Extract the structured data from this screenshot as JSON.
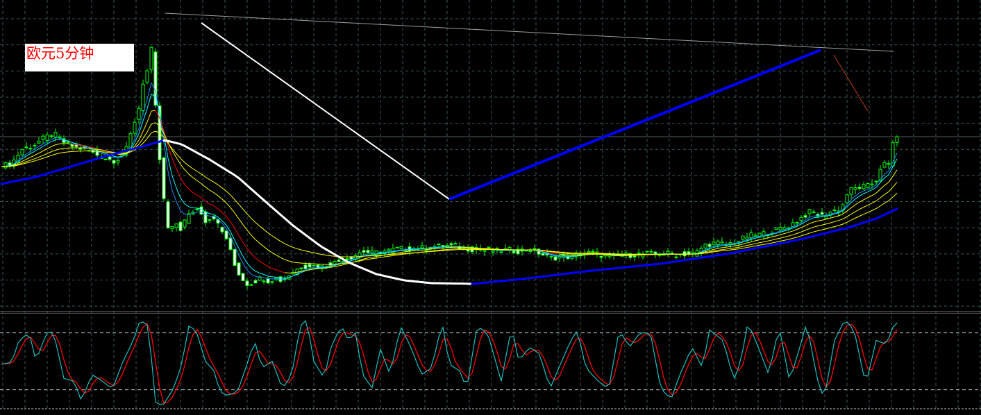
{
  "label": {
    "title": "欧元5分钟"
  },
  "colors": {
    "background": "#000000",
    "grid": "#3a5a5a",
    "candle": "#00ff00",
    "bear_body": "#ffffff",
    "ema_fast": "#1e90ff",
    "ema_fast2": "#00ffff",
    "ema_mid": "#ffff00",
    "ema_falling": "#ff0000",
    "ma_long_up": "#0000ff",
    "ma_long_down": "#ffffff",
    "stoch_main": "#20c0c0",
    "stoch_signal": "#ff0000",
    "level_lines": "#c8c8c8",
    "trend_gray": "#a0a0a0",
    "trend_white": "#ffffff",
    "trend_blue": "#0000ff",
    "trend_brown": "#c04010"
  },
  "chart_data": [
    {
      "type": "candlestick",
      "title": "",
      "grid": true,
      "bars": 216,
      "ylim": [
        0,
        450
      ],
      "close_points": [
        [
          0,
          210
        ],
        [
          2.5,
          215
        ],
        [
          5,
          235
        ],
        [
          7.5,
          240
        ],
        [
          10,
          250
        ],
        [
          12.5,
          258
        ],
        [
          15,
          245
        ],
        [
          17.5,
          238
        ],
        [
          20,
          235
        ],
        [
          22.5,
          228
        ],
        [
          25,
          222
        ],
        [
          27.5,
          218
        ],
        [
          30,
          235
        ],
        [
          31.7,
          270
        ],
        [
          33.3,
          300
        ],
        [
          34.2,
          340
        ],
        [
          35.3,
          350
        ],
        [
          36.3,
          390
        ],
        [
          37,
          295
        ],
        [
          38,
          220
        ],
        [
          39.2,
          150
        ],
        [
          40.3,
          110
        ],
        [
          41.7,
          130
        ],
        [
          43,
          120
        ],
        [
          44.3,
          135
        ],
        [
          45.8,
          145
        ],
        [
          47.5,
          150
        ],
        [
          49.2,
          130
        ],
        [
          50.8,
          140
        ],
        [
          52.5,
          120
        ],
        [
          54.2,
          105
        ],
        [
          55.8,
          70
        ],
        [
          57.5,
          50
        ],
        [
          59.2,
          40
        ],
        [
          60.8,
          45
        ],
        [
          62.5,
          50
        ],
        [
          64.2,
          45
        ],
        [
          65.8,
          50
        ],
        [
          67.5,
          45
        ],
        [
          69.2,
          55
        ],
        [
          71.7,
          65
        ],
        [
          74.2,
          68
        ],
        [
          76.7,
          65
        ],
        [
          79.2,
          70
        ],
        [
          81.7,
          75
        ],
        [
          84.2,
          80
        ],
        [
          86.7,
          88
        ],
        [
          89.2,
          85
        ],
        [
          91.7,
          88
        ],
        [
          94.2,
          90
        ],
        [
          96.7,
          92
        ],
        [
          99.2,
          92
        ],
        [
          101.7,
          93
        ],
        [
          104.2,
          95
        ],
        [
          106.7,
          96
        ],
        [
          109.2,
          95
        ],
        [
          111.7,
          92
        ],
        [
          114.2,
          90
        ],
        [
          116.7,
          90
        ],
        [
          119.2,
          88
        ],
        [
          121.7,
          90
        ],
        [
          124.2,
          88
        ],
        [
          126.7,
          92
        ],
        [
          129.2,
          85
        ],
        [
          131.7,
          78
        ],
        [
          134.2,
          80
        ],
        [
          136.7,
          80
        ],
        [
          139.2,
          84
        ],
        [
          141.7,
          86
        ],
        [
          144.2,
          82
        ],
        [
          146.7,
          80
        ],
        [
          149.2,
          82
        ],
        [
          151.7,
          83
        ],
        [
          154.2,
          84
        ],
        [
          156.7,
          84
        ],
        [
          159.2,
          85
        ],
        [
          161.7,
          83
        ],
        [
          164.2,
          84
        ],
        [
          166.7,
          85
        ],
        [
          169.2,
          98
        ],
        [
          171.7,
          100
        ],
        [
          174.2,
          98
        ],
        [
          176.7,
          102
        ],
        [
          179.2,
          110
        ],
        [
          181.7,
          112
        ],
        [
          184.2,
          115
        ],
        [
          186.7,
          120
        ],
        [
          189.2,
          125
        ],
        [
          191.7,
          135
        ],
        [
          194.2,
          145
        ],
        [
          196.7,
          138
        ],
        [
          199.2,
          145
        ],
        [
          201.7,
          150
        ],
        [
          203.3,
          175
        ],
        [
          205.8,
          180
        ],
        [
          208.3,
          182
        ],
        [
          210.3,
          192
        ],
        [
          211.3,
          215
        ],
        [
          213,
          212
        ],
        [
          214.2,
          250
        ],
        [
          215.3,
          257
        ]
      ],
      "moving_averages": [
        {
          "kind": "ema",
          "period": 5,
          "color_key": "ema_fast"
        },
        {
          "kind": "ema",
          "period": 7,
          "color_key": "ema_fast2"
        },
        {
          "kind": "ema",
          "period": 12,
          "color_key": "ema_mid",
          "falling_color_key": "ema_falling"
        },
        {
          "kind": "ema",
          "period": 20,
          "color_key": "ema_mid"
        },
        {
          "kind": "ema",
          "period": 30,
          "color_key": "ema_mid"
        }
      ],
      "long_ma_points": [
        [
          0,
          185
        ],
        [
          8.3,
          195
        ],
        [
          16.7,
          210
        ],
        [
          25,
          225
        ],
        [
          33.3,
          238
        ],
        [
          39.2,
          248
        ],
        [
          43.3,
          242
        ],
        [
          50,
          220
        ],
        [
          56.7,
          195
        ],
        [
          63.3,
          160
        ],
        [
          70,
          125
        ],
        [
          76.7,
          95
        ],
        [
          83.3,
          72
        ],
        [
          90,
          55
        ],
        [
          96.7,
          46
        ],
        [
          103.3,
          42
        ],
        [
          113.3,
          41
        ],
        [
          125,
          48
        ],
        [
          141.7,
          60
        ],
        [
          158.3,
          70
        ],
        [
          175,
          85
        ],
        [
          191.7,
          105
        ],
        [
          203.3,
          122
        ],
        [
          210,
          135
        ],
        [
          215.3,
          150
        ]
      ],
      "long_ma_down_range": [
        39.2,
        113.3
      ],
      "current_price": 253,
      "trendlines": [
        {
          "from": [
            39.3,
            431
          ],
          "to": [
            214.2,
            376
          ],
          "color_key": "trend_gray",
          "width": "thin"
        },
        {
          "from": [
            48,
            417
          ],
          "to": [
            107.5,
            163
          ],
          "color_key": "trend_white",
          "width": "medium"
        },
        {
          "from": [
            107.5,
            163
          ],
          "to": [
            196.7,
            378
          ],
          "color_key": "trend_blue",
          "width": "thick"
        },
        {
          "from": [
            199.8,
            371
          ],
          "to": [
            208,
            290
          ],
          "color_key": "trend_brown",
          "width": "thin"
        }
      ]
    },
    {
      "type": "line",
      "title": "",
      "ylim": [
        0,
        100
      ],
      "levels": [
        20,
        80
      ],
      "series": [
        {
          "key": "k",
          "color_key": "stoch_main",
          "points": [
            [
              0,
              47
            ],
            [
              2.5,
              49
            ],
            [
              4.2,
              72
            ],
            [
              6.7,
              80
            ],
            [
              8.3,
              50
            ],
            [
              10.8,
              80
            ],
            [
              12.5,
              81
            ],
            [
              15,
              32
            ],
            [
              17.5,
              29
            ],
            [
              19.2,
              8
            ],
            [
              21.7,
              36
            ],
            [
              23.3,
              32
            ],
            [
              26.7,
              21
            ],
            [
              29.2,
              50
            ],
            [
              31.7,
              72
            ],
            [
              33.3,
              94
            ],
            [
              35.3,
              87
            ],
            [
              37,
              7
            ],
            [
              38.7,
              3
            ],
            [
              41.3,
              21
            ],
            [
              43.3,
              47
            ],
            [
              45,
              87
            ],
            [
              46.7,
              83
            ],
            [
              49.2,
              47
            ],
            [
              50.8,
              43
            ],
            [
              52.5,
              18
            ],
            [
              54.2,
              14
            ],
            [
              56.7,
              18
            ],
            [
              59.2,
              50
            ],
            [
              60.8,
              72
            ],
            [
              62.5,
              43
            ],
            [
              65,
              50
            ],
            [
              67.5,
              21
            ],
            [
              69.7,
              36
            ],
            [
              71.7,
              87
            ],
            [
              73.3,
              94
            ],
            [
              75,
              50
            ],
            [
              77.5,
              32
            ],
            [
              79.2,
              67
            ],
            [
              81.7,
              87
            ],
            [
              83.3,
              72
            ],
            [
              85,
              80
            ],
            [
              86.7,
              36
            ],
            [
              89.2,
              21
            ],
            [
              90.8,
              65
            ],
            [
              93.3,
              36
            ],
            [
              95.8,
              87
            ],
            [
              98.3,
              65
            ],
            [
              100.8,
              36
            ],
            [
              103.3,
              43
            ],
            [
              105.8,
              91
            ],
            [
              107.5,
              47
            ],
            [
              110,
              40
            ],
            [
              111.7,
              21
            ],
            [
              114.2,
              87
            ],
            [
              116.7,
              80
            ],
            [
              120,
              29
            ],
            [
              122.5,
              87
            ],
            [
              124.2,
              50
            ],
            [
              126.7,
              65
            ],
            [
              129.2,
              58
            ],
            [
              131.7,
              21
            ],
            [
              134.2,
              47
            ],
            [
              136.7,
              72
            ],
            [
              138.3,
              83
            ],
            [
              140.3,
              43
            ],
            [
              143.3,
              29
            ],
            [
              145.8,
              21
            ],
            [
              148.3,
              83
            ],
            [
              150.8,
              65
            ],
            [
              153.3,
              80
            ],
            [
              155.8,
              80
            ],
            [
              158.3,
              21
            ],
            [
              160.8,
              10
            ],
            [
              162.5,
              32
            ],
            [
              165.8,
              65
            ],
            [
              168.3,
              43
            ],
            [
              170,
              83
            ],
            [
              173.3,
              72
            ],
            [
              175.8,
              30
            ],
            [
              177.5,
              50
            ],
            [
              179.2,
              91
            ],
            [
              181.7,
              65
            ],
            [
              184.2,
              36
            ],
            [
              186.7,
              87
            ],
            [
              189.2,
              29
            ],
            [
              191.7,
              65
            ],
            [
              193.3,
              91
            ],
            [
              195.8,
              32
            ],
            [
              197.5,
              10
            ],
            [
              200,
              72
            ],
            [
              202.5,
              94
            ],
            [
              204.7,
              83
            ],
            [
              207.5,
              25
            ],
            [
              210,
              72
            ],
            [
              212.5,
              68
            ],
            [
              214.7,
              94
            ],
            [
              215.3,
              87
            ]
          ]
        },
        {
          "key": "d",
          "color_key": "stoch_signal",
          "smoothing": 3
        }
      ]
    }
  ]
}
